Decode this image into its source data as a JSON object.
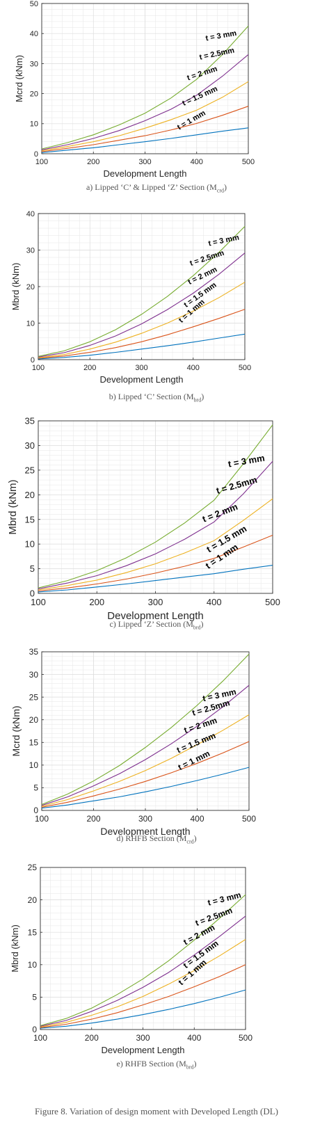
{
  "figure_caption": "Figure 8. Variation of design moment with Developed Length (DL)",
  "panels": [
    {
      "caption_prefix": "a) Lipped ‘C’ & Lipped ‘Z’ Section (M",
      "caption_sub": "crd",
      "caption_suffix": ")"
    },
    {
      "caption_prefix": "b) Lipped ‘C’ Section (M",
      "caption_sub": "brd",
      "caption_suffix": ")"
    },
    {
      "caption_prefix": "c) Lipped ‘Z’ Section (M",
      "caption_sub": "brd",
      "caption_suffix": ")"
    },
    {
      "caption_prefix": "d) RHFB Section (M",
      "caption_sub": "crd",
      "caption_suffix": ")"
    },
    {
      "caption_prefix": "e) RHFB Section (M",
      "caption_sub": "brd",
      "caption_suffix": ")"
    }
  ],
  "chart_data": [
    {
      "type": "line",
      "xlabel": "Development Length",
      "ylabel": "Mcrd (kNm)",
      "xlim": [
        100,
        500
      ],
      "ylim": [
        0,
        50
      ],
      "xticks": [
        100,
        200,
        300,
        400,
        500
      ],
      "yticks": [
        0,
        10,
        20,
        30,
        40,
        50
      ],
      "grid": true,
      "x": [
        100,
        150,
        200,
        250,
        300,
        350,
        400,
        450,
        500
      ],
      "series": [
        {
          "name": "t = 1 mm",
          "color": "#0072bd",
          "values": [
            0.4,
            1.2,
            2.0,
            3.0,
            4.0,
            5.1,
            6.3,
            7.5,
            8.6
          ]
        },
        {
          "name": "t = 1.5 mm",
          "color": "#d95319",
          "values": [
            0.7,
            1.8,
            3.0,
            4.5,
            6.0,
            7.9,
            10.1,
            12.8,
            15.8
          ]
        },
        {
          "name": "t = 2 mm",
          "color": "#edb120",
          "values": [
            1.0,
            2.4,
            4.0,
            6.0,
            8.5,
            11.3,
            14.5,
            18.8,
            24.0
          ]
        },
        {
          "name": "t = 2.5mm",
          "color": "#7e2f8e",
          "values": [
            1.3,
            3.0,
            5.1,
            7.7,
            11.0,
            14.8,
            19.5,
            25.8,
            33.0
          ]
        },
        {
          "name": "t = 3 mm",
          "color": "#77ac30",
          "values": [
            1.6,
            3.7,
            6.3,
            9.6,
            13.5,
            18.5,
            24.8,
            33.0,
            42.5
          ]
        }
      ]
    },
    {
      "type": "line",
      "xlabel": "Development Length",
      "ylabel": "Mbrd (kNm)",
      "xlim": [
        100,
        500
      ],
      "ylim": [
        0,
        40
      ],
      "xticks": [
        100,
        200,
        300,
        400,
        500
      ],
      "yticks": [
        0,
        10,
        20,
        30,
        40
      ],
      "grid": true,
      "x": [
        100,
        150,
        200,
        250,
        300,
        350,
        400,
        450,
        500
      ],
      "series": [
        {
          "name": "t = 1 mm",
          "color": "#0072bd",
          "values": [
            0.2,
            0.6,
            1.2,
            2.0,
            2.9,
            3.8,
            4.8,
            5.9,
            7.0
          ]
        },
        {
          "name": "t = 1.5 mm",
          "color": "#d95319",
          "values": [
            0.4,
            1.0,
            2.0,
            3.3,
            4.9,
            6.8,
            9.0,
            11.3,
            13.8
          ]
        },
        {
          "name": "t = 2 mm",
          "color": "#edb120",
          "values": [
            0.5,
            1.4,
            2.9,
            4.8,
            7.2,
            10.0,
            13.3,
            17.0,
            21.2
          ]
        },
        {
          "name": "t = 2.5mm",
          "color": "#7e2f8e",
          "values": [
            0.7,
            1.9,
            3.9,
            6.5,
            9.8,
            13.7,
            18.2,
            23.4,
            29.2
          ]
        },
        {
          "name": "t = 3 mm",
          "color": "#77ac30",
          "values": [
            0.9,
            2.4,
            4.9,
            8.2,
            12.4,
            17.3,
            23.0,
            29.4,
            36.5
          ]
        }
      ]
    },
    {
      "type": "line",
      "xlabel": "Development Length",
      "ylabel": "Mbrd (kNm)",
      "xlim": [
        100,
        500
      ],
      "ylim": [
        0,
        35
      ],
      "xticks": [
        100,
        200,
        300,
        400,
        500
      ],
      "yticks": [
        0,
        5,
        10,
        15,
        20,
        25,
        30,
        35
      ],
      "grid": true,
      "x": [
        100,
        150,
        200,
        250,
        300,
        350,
        400,
        450,
        500
      ],
      "series": [
        {
          "name": "t = 1 mm",
          "color": "#0072bd",
          "values": [
            0.3,
            0.7,
            1.3,
            1.9,
            2.6,
            3.3,
            4.0,
            4.9,
            5.7
          ]
        },
        {
          "name": "t = 1.5 mm",
          "color": "#d95319",
          "values": [
            0.5,
            1.1,
            1.9,
            2.9,
            4.1,
            5.5,
            7.1,
            9.4,
            11.8
          ]
        },
        {
          "name": "t = 2 mm",
          "color": "#edb120",
          "values": [
            0.7,
            1.6,
            2.7,
            4.2,
            6.0,
            8.2,
            10.7,
            14.8,
            19.2
          ]
        },
        {
          "name": "t = 2.5mm",
          "color": "#7e2f8e",
          "values": [
            0.9,
            2.1,
            3.6,
            5.6,
            8.0,
            11.0,
            14.5,
            20.2,
            26.8
          ]
        },
        {
          "name": "t = 3 mm",
          "color": "#77ac30",
          "values": [
            1.1,
            2.6,
            4.6,
            7.2,
            10.4,
            14.3,
            18.9,
            26.3,
            34.2
          ]
        }
      ]
    },
    {
      "type": "line",
      "xlabel": "Development Length",
      "ylabel": "Mcrd (kNm)",
      "xlim": [
        100,
        500
      ],
      "ylim": [
        0,
        35
      ],
      "xticks": [
        100,
        200,
        300,
        400,
        500
      ],
      "yticks": [
        0,
        5,
        10,
        15,
        20,
        25,
        30,
        35
      ],
      "grid": true,
      "x": [
        100,
        150,
        200,
        250,
        300,
        350,
        400,
        450,
        500
      ],
      "series": [
        {
          "name": "t = 1 mm",
          "color": "#0072bd",
          "values": [
            0.5,
            1.2,
            2.1,
            3.0,
            4.1,
            5.3,
            6.6,
            8.0,
            9.5
          ]
        },
        {
          "name": "t = 1.5 mm",
          "color": "#d95319",
          "values": [
            0.7,
            1.8,
            3.2,
            4.7,
            6.4,
            8.3,
            10.4,
            12.7,
            15.2
          ]
        },
        {
          "name": "t = 2 mm",
          "color": "#edb120",
          "values": [
            0.9,
            2.4,
            4.3,
            6.4,
            8.8,
            11.5,
            14.5,
            17.7,
            21.1
          ]
        },
        {
          "name": "t = 2.5mm",
          "color": "#7e2f8e",
          "values": [
            1.1,
            3.0,
            5.4,
            8.1,
            11.2,
            14.7,
            18.6,
            22.9,
            27.6
          ]
        },
        {
          "name": "t = 3 mm",
          "color": "#77ac30",
          "values": [
            1.3,
            3.6,
            6.5,
            9.9,
            13.9,
            18.3,
            23.2,
            28.6,
            34.5
          ]
        }
      ]
    },
    {
      "type": "line",
      "xlabel": "Development Length",
      "ylabel": "Mbrd (kNm)",
      "xlim": [
        100,
        500
      ],
      "ylim": [
        0,
        25
      ],
      "xticks": [
        100,
        200,
        300,
        400,
        500
      ],
      "yticks": [
        0,
        5,
        10,
        15,
        20,
        25
      ],
      "grid": true,
      "x": [
        100,
        150,
        200,
        250,
        300,
        350,
        400,
        450,
        500
      ],
      "series": [
        {
          "name": "t = 1 mm",
          "color": "#0072bd",
          "values": [
            0.2,
            0.5,
            1.0,
            1.6,
            2.3,
            3.1,
            4.0,
            5.0,
            6.1
          ]
        },
        {
          "name": "t = 1.5 mm",
          "color": "#d95319",
          "values": [
            0.3,
            0.8,
            1.6,
            2.6,
            3.8,
            5.1,
            6.6,
            8.2,
            10.0
          ]
        },
        {
          "name": "t = 2 mm",
          "color": "#edb120",
          "values": [
            0.4,
            1.1,
            2.2,
            3.5,
            5.1,
            7.0,
            9.1,
            11.4,
            13.9
          ]
        },
        {
          "name": "t = 2.5mm",
          "color": "#7e2f8e",
          "values": [
            0.5,
            1.4,
            2.8,
            4.5,
            6.5,
            8.8,
            11.5,
            14.4,
            17.5
          ]
        },
        {
          "name": "t = 3 mm",
          "color": "#77ac30",
          "values": [
            0.6,
            1.7,
            3.3,
            5.4,
            7.8,
            10.6,
            13.8,
            17.2,
            20.8
          ]
        }
      ]
    }
  ]
}
